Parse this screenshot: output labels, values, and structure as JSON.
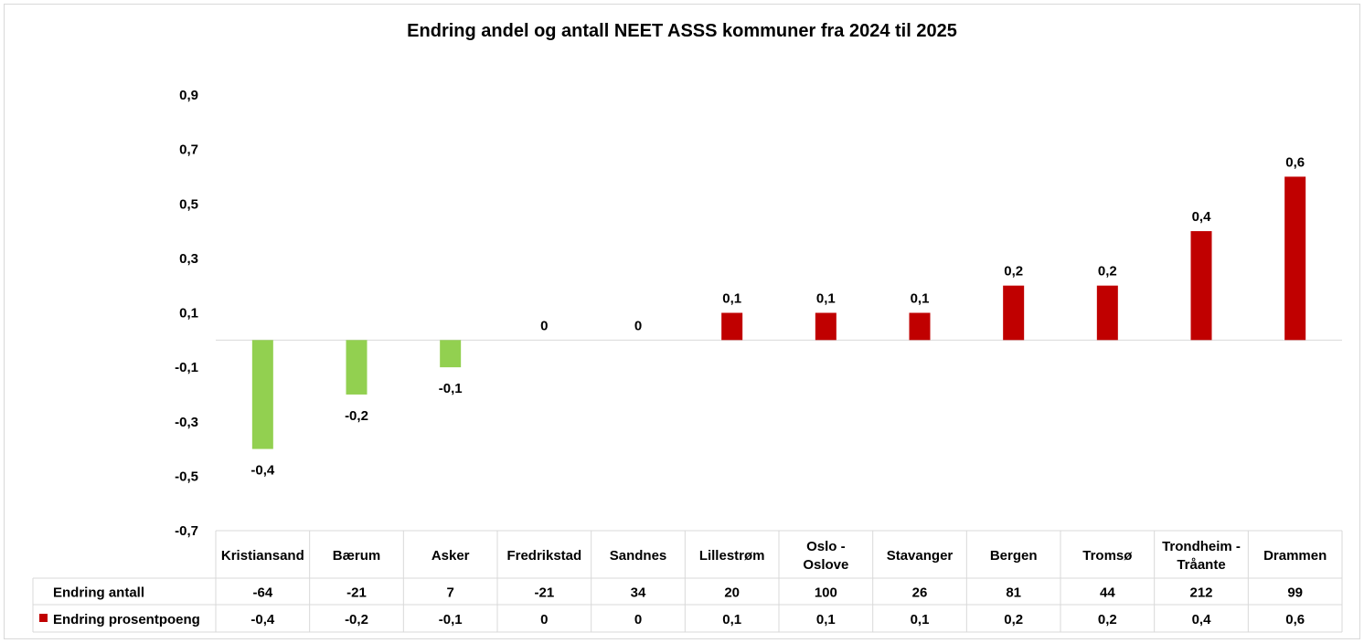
{
  "chart_data": {
    "type": "bar",
    "title": "Endring andel og antall NEET ASSS kommuner fra 2024 til 2025",
    "categories": [
      [
        "Kristiansand"
      ],
      [
        "Bærum"
      ],
      [
        "Asker"
      ],
      [
        "Fredrikstad"
      ],
      [
        "Sandnes"
      ],
      [
        "Lillestrøm"
      ],
      [
        "Oslo -",
        "Oslove"
      ],
      [
        "Stavanger"
      ],
      [
        "Bergen"
      ],
      [
        "Tromsø"
      ],
      [
        "Trondheim -",
        "Tråante"
      ],
      [
        "Drammen"
      ]
    ],
    "series": [
      {
        "name": "Endring antall",
        "values": [
          -64,
          -21,
          7,
          -21,
          34,
          20,
          100,
          26,
          81,
          44,
          212,
          99
        ],
        "labels": [
          "-64",
          "-21",
          "7",
          "-21",
          "34",
          "20",
          "100",
          "26",
          "81",
          "44",
          "212",
          "99"
        ],
        "plotted": false
      },
      {
        "name": "Endring prosentpoeng",
        "values": [
          -0.4,
          -0.2,
          -0.1,
          0,
          0,
          0.1,
          0.1,
          0.1,
          0.2,
          0.2,
          0.4,
          0.6
        ],
        "labels": [
          "-0,4",
          "-0,2",
          "-0,1",
          "0",
          "0",
          "0,1",
          "0,1",
          "0,1",
          "0,2",
          "0,2",
          "0,4",
          "0,6"
        ],
        "plotted": true
      }
    ],
    "y_ticks": [
      0.9,
      0.7,
      0.5,
      0.3,
      0.1,
      -0.1,
      -0.3,
      -0.5,
      -0.7
    ],
    "y_tick_labels": [
      "0,9",
      "0,7",
      "0,5",
      "0,3",
      "0,1",
      "-0,1",
      "-0,3",
      "-0,5",
      "-0,7"
    ],
    "ylim": [
      -0.7,
      0.9
    ],
    "legend": "data-table",
    "grid": false,
    "colors": {
      "positive": "#c00000",
      "negative": "#92d050",
      "table_border": "#d9d9d9",
      "zero_line": "#d9d9d9"
    }
  }
}
